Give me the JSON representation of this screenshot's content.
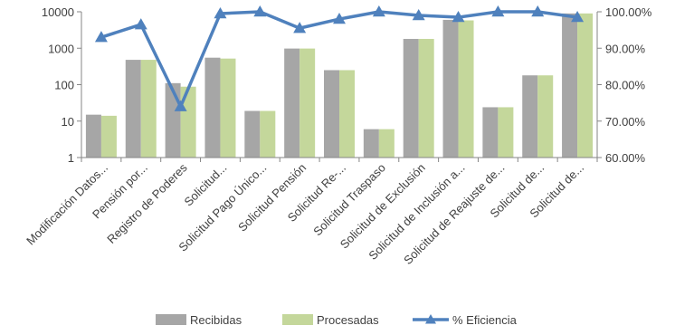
{
  "chart_data": {
    "type": "bar",
    "categories": [
      "Modificación Datos...",
      "Pensión por...",
      "Registro de Poderes",
      "Solicitud...",
      "Solicitud Pago Único...",
      "Solicitud Pensión",
      "Solicitud Re-...",
      "Solicitud Traspaso",
      "Solicitud de Exclusión",
      "Solicitud de Inclusión a...",
      "Solicitud de Reajuste de...",
      "Solicitud de...",
      "Solicitud de..."
    ],
    "series": [
      {
        "name": "Recibidas",
        "type": "bar",
        "axis": "left",
        "color": "#a6a6a6",
        "values": [
          15,
          480,
          110,
          550,
          19,
          980,
          250,
          6,
          1800,
          6000,
          24,
          180,
          9000
        ]
      },
      {
        "name": "Procesadas",
        "type": "bar",
        "axis": "left",
        "color": "#c4d79b",
        "values": [
          14,
          480,
          88,
          520,
          19,
          980,
          250,
          6,
          1800,
          5800,
          24,
          180,
          9000
        ]
      },
      {
        "name": "% Eficiencia",
        "type": "line",
        "axis": "right",
        "color": "#4f81bd",
        "values": [
          0.93,
          0.965,
          0.74,
          0.995,
          1.0,
          0.955,
          0.98,
          1.0,
          0.99,
          0.985,
          1.0,
          1.0,
          0.985
        ]
      }
    ],
    "left_axis": {
      "scale": "log",
      "range": [
        1,
        10000
      ],
      "ticks": [
        1,
        10,
        100,
        1000,
        10000
      ],
      "tick_labels": [
        "1",
        "10",
        "100",
        "1000",
        "10000"
      ]
    },
    "right_axis": {
      "scale": "linear",
      "range": [
        0.6,
        1.0
      ],
      "ticks": [
        0.6,
        0.7,
        0.8,
        0.9,
        1.0
      ],
      "tick_labels": [
        "60.00%",
        "70.00%",
        "80.00%",
        "90.00%",
        "100.00%"
      ]
    },
    "grid": false,
    "legend": {
      "position": "bottom",
      "entries": [
        "Recibidas",
        "Procesadas",
        "% Eficiencia"
      ]
    }
  }
}
